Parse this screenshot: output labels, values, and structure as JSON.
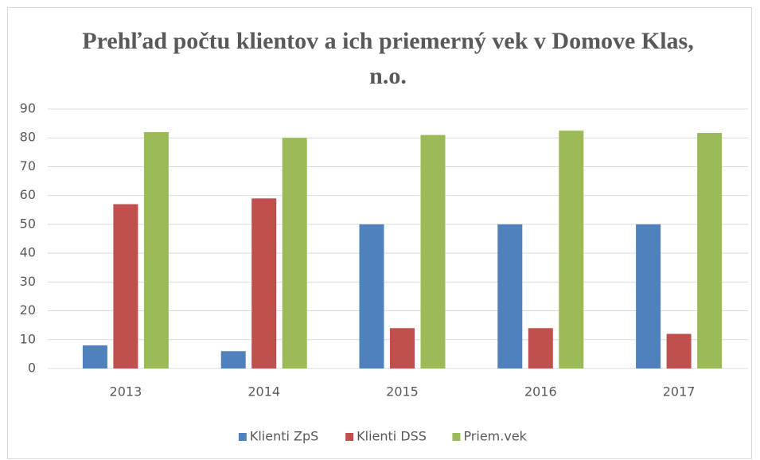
{
  "chart_data": {
    "type": "bar",
    "title": "Prehľad počtu klientov a ich priemerný vek v Domove Klas, n.o.",
    "categories": [
      "2013",
      "2014",
      "2015",
      "2016",
      "2017"
    ],
    "series": [
      {
        "name": "Klienti ZpS",
        "color": "#4f81bd",
        "values": [
          8,
          6,
          50,
          50,
          50
        ]
      },
      {
        "name": "Klienti DSS",
        "color": "#c0504d",
        "values": [
          57,
          59,
          14,
          14,
          12
        ]
      },
      {
        "name": "Priem.vek",
        "color": "#9bbb59",
        "values": [
          82,
          80,
          81,
          82.5,
          81.7
        ]
      }
    ],
    "ylim": [
      0,
      90
    ],
    "yticks": [
      0,
      10,
      20,
      30,
      40,
      50,
      60,
      70,
      80,
      90
    ],
    "grid": true,
    "legend": "bottom"
  }
}
